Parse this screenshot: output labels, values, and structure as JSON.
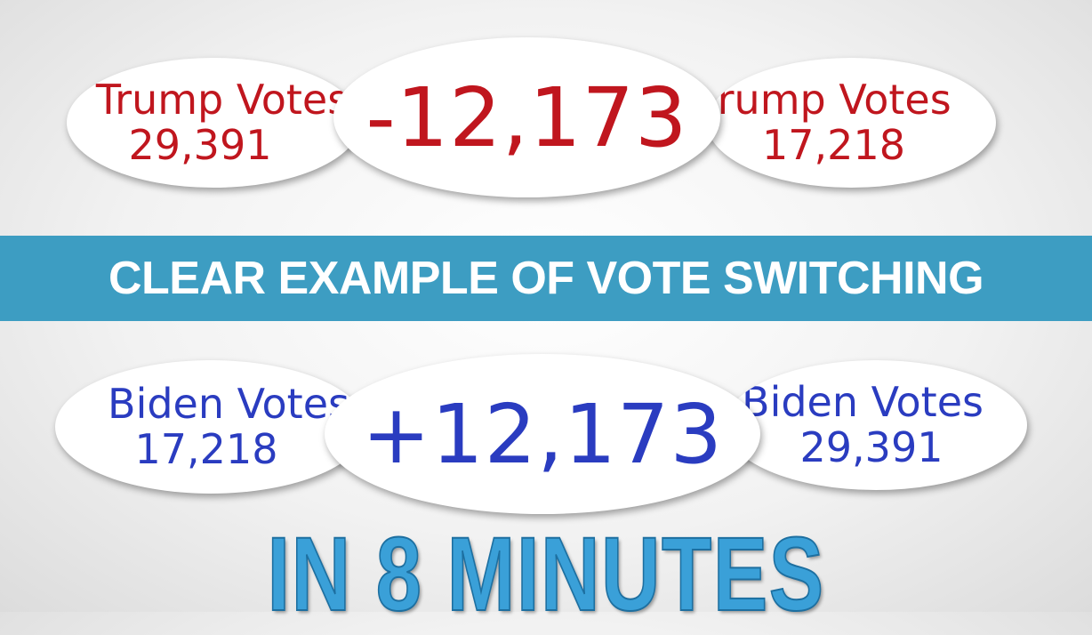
{
  "top": {
    "left": {
      "label": "Trump Votes",
      "value": "29,391"
    },
    "center": {
      "value": "-12,173"
    },
    "right": {
      "label": "Trump Votes",
      "value": "17,218"
    }
  },
  "banner": {
    "text": "CLEAR EXAMPLE OF VOTE SWITCHING"
  },
  "bottom": {
    "left": {
      "label": "Biden Votes",
      "value": "17,218"
    },
    "center": {
      "value": "+12,173"
    },
    "right": {
      "label": "Biden Votes",
      "value": "29,391"
    }
  },
  "footer": {
    "text": "IN 8 MINUTES"
  },
  "colors": {
    "trump": "#c0161e",
    "biden": "#2a3cc0",
    "banner": "#3d9dc2",
    "footer": "#3aa0d8"
  }
}
